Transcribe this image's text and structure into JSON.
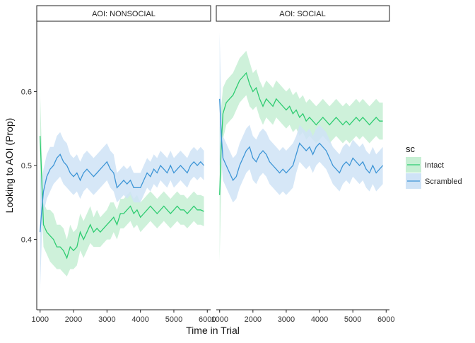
{
  "chart_data": {
    "type": "line",
    "ylabel": "Looking to AOI (Prop)",
    "xlabel": "Time in Trial",
    "xlim": [
      900,
      6100
    ],
    "ylim": [
      0.305,
      0.695
    ],
    "x_ticks": [
      1000,
      2000,
      3000,
      4000,
      5000,
      6000
    ],
    "y_ticks": [
      0.4,
      0.5,
      0.6
    ],
    "x_tick_labels": [
      "1000",
      "2000",
      "3000",
      "4000",
      "5000",
      "6000"
    ],
    "y_tick_labels": [
      "0.4",
      "0.5",
      "0.6"
    ],
    "grid": false,
    "legend": {
      "title": "sc",
      "position": "right",
      "entries": [
        "Intact",
        "Scrambled"
      ]
    },
    "colors": {
      "Intact": "#2ecc71",
      "Scrambled": "#3d95d6",
      "Intact_band": "#c6efd3",
      "Scrambled_band": "#cfe3f6"
    },
    "panels": [
      {
        "strip": "AOI:  NONSOCIAL",
        "series": [
          {
            "name": "Intact",
            "x": [
              1000,
              1050,
              1100,
              1200,
              1300,
              1400,
              1500,
              1600,
              1700,
              1800,
              1900,
              2000,
              2100,
              2200,
              2300,
              2400,
              2500,
              2600,
              2700,
              2800,
              2900,
              3000,
              3100,
              3200,
              3300,
              3400,
              3500,
              3600,
              3700,
              3800,
              3900,
              4000,
              4100,
              4200,
              4300,
              4400,
              4500,
              4600,
              4700,
              4800,
              4900,
              5000,
              5100,
              5200,
              5300,
              5400,
              5500,
              5600,
              5700,
              5800,
              5900
            ],
            "y": [
              0.54,
              0.48,
              0.42,
              0.41,
              0.405,
              0.4,
              0.39,
              0.39,
              0.385,
              0.375,
              0.39,
              0.385,
              0.39,
              0.41,
              0.4,
              0.41,
              0.42,
              0.41,
              0.415,
              0.41,
              0.415,
              0.42,
              0.425,
              0.43,
              0.42,
              0.435,
              0.435,
              0.44,
              0.445,
              0.435,
              0.44,
              0.43,
              0.435,
              0.44,
              0.445,
              0.44,
              0.435,
              0.44,
              0.445,
              0.44,
              0.435,
              0.44,
              0.445,
              0.44,
              0.44,
              0.435,
              0.44,
              0.445,
              0.44,
              0.44,
              0.438
            ],
            "lo": [
              0.48,
              0.45,
              0.39,
              0.38,
              0.37,
              0.365,
              0.36,
              0.36,
              0.355,
              0.35,
              0.36,
              0.36,
              0.365,
              0.385,
              0.375,
              0.385,
              0.395,
              0.39,
              0.39,
              0.39,
              0.395,
              0.4,
              0.4,
              0.41,
              0.4,
              0.415,
              0.415,
              0.42,
              0.425,
              0.415,
              0.42,
              0.41,
              0.415,
              0.42,
              0.425,
              0.42,
              0.415,
              0.42,
              0.425,
              0.42,
              0.415,
              0.42,
              0.425,
              0.42,
              0.42,
              0.415,
              0.42,
              0.425,
              0.42,
              0.42,
              0.418
            ],
            "hi": [
              0.6,
              0.52,
              0.45,
              0.44,
              0.44,
              0.435,
              0.42,
              0.42,
              0.415,
              0.4,
              0.42,
              0.41,
              0.415,
              0.435,
              0.425,
              0.435,
              0.445,
              0.43,
              0.44,
              0.43,
              0.435,
              0.44,
              0.45,
              0.45,
              0.44,
              0.455,
              0.455,
              0.46,
              0.465,
              0.455,
              0.46,
              0.45,
              0.455,
              0.46,
              0.465,
              0.46,
              0.455,
              0.46,
              0.465,
              0.46,
              0.455,
              0.46,
              0.465,
              0.46,
              0.46,
              0.455,
              0.46,
              0.465,
              0.46,
              0.46,
              0.458
            ]
          },
          {
            "name": "Scrambled",
            "x": [
              1000,
              1050,
              1100,
              1200,
              1300,
              1400,
              1500,
              1600,
              1700,
              1800,
              1900,
              2000,
              2100,
              2200,
              2300,
              2400,
              2500,
              2600,
              2700,
              2800,
              2900,
              3000,
              3100,
              3200,
              3300,
              3400,
              3500,
              3600,
              3700,
              3800,
              3900,
              4000,
              4100,
              4200,
              4300,
              4400,
              4500,
              4600,
              4700,
              4800,
              4900,
              5000,
              5100,
              5200,
              5300,
              5400,
              5500,
              5600,
              5700,
              5800,
              5900
            ],
            "y": [
              0.41,
              0.44,
              0.465,
              0.485,
              0.495,
              0.5,
              0.51,
              0.515,
              0.505,
              0.5,
              0.49,
              0.485,
              0.49,
              0.48,
              0.49,
              0.495,
              0.49,
              0.485,
              0.49,
              0.495,
              0.5,
              0.505,
              0.495,
              0.49,
              0.47,
              0.475,
              0.48,
              0.475,
              0.48,
              0.47,
              0.47,
              0.47,
              0.48,
              0.49,
              0.485,
              0.495,
              0.49,
              0.5,
              0.495,
              0.49,
              0.5,
              0.49,
              0.495,
              0.5,
              0.495,
              0.49,
              0.5,
              0.505,
              0.5,
              0.505,
              0.5
            ],
            "lo": [
              0.33,
              0.4,
              0.435,
              0.455,
              0.465,
              0.475,
              0.48,
              0.485,
              0.475,
              0.47,
              0.465,
              0.46,
              0.465,
              0.455,
              0.465,
              0.47,
              0.465,
              0.46,
              0.465,
              0.47,
              0.475,
              0.48,
              0.47,
              0.465,
              0.45,
              0.455,
              0.46,
              0.455,
              0.46,
              0.45,
              0.45,
              0.45,
              0.46,
              0.47,
              0.465,
              0.475,
              0.47,
              0.48,
              0.475,
              0.47,
              0.48,
              0.47,
              0.475,
              0.48,
              0.475,
              0.47,
              0.48,
              0.485,
              0.48,
              0.485,
              0.48
            ],
            "hi": [
              0.49,
              0.48,
              0.495,
              0.515,
              0.525,
              0.525,
              0.54,
              0.545,
              0.535,
              0.53,
              0.515,
              0.51,
              0.515,
              0.505,
              0.515,
              0.52,
              0.515,
              0.51,
              0.515,
              0.52,
              0.525,
              0.53,
              0.52,
              0.515,
              0.49,
              0.495,
              0.5,
              0.495,
              0.5,
              0.49,
              0.49,
              0.49,
              0.5,
              0.51,
              0.505,
              0.515,
              0.51,
              0.52,
              0.515,
              0.51,
              0.52,
              0.51,
              0.515,
              0.52,
              0.515,
              0.51,
              0.52,
              0.525,
              0.52,
              0.525,
              0.52
            ]
          }
        ]
      },
      {
        "strip": "AOI:  SOCIAL",
        "series": [
          {
            "name": "Intact",
            "x": [
              1000,
              1050,
              1100,
              1200,
              1300,
              1400,
              1500,
              1600,
              1700,
              1800,
              1900,
              2000,
              2100,
              2200,
              2300,
              2400,
              2500,
              2600,
              2700,
              2800,
              2900,
              3000,
              3100,
              3200,
              3300,
              3400,
              3500,
              3600,
              3700,
              3800,
              3900,
              4000,
              4100,
              4200,
              4300,
              4400,
              4500,
              4600,
              4700,
              4800,
              4900,
              5000,
              5100,
              5200,
              5300,
              5400,
              5500,
              5600,
              5700,
              5800,
              5900
            ],
            "y": [
              0.46,
              0.53,
              0.57,
              0.585,
              0.59,
              0.595,
              0.605,
              0.615,
              0.62,
              0.625,
              0.61,
              0.6,
              0.605,
              0.59,
              0.58,
              0.59,
              0.585,
              0.58,
              0.59,
              0.585,
              0.58,
              0.575,
              0.58,
              0.57,
              0.575,
              0.565,
              0.57,
              0.56,
              0.565,
              0.56,
              0.555,
              0.56,
              0.565,
              0.56,
              0.555,
              0.56,
              0.565,
              0.56,
              0.555,
              0.56,
              0.555,
              0.56,
              0.565,
              0.56,
              0.565,
              0.56,
              0.555,
              0.56,
              0.565,
              0.56,
              0.56
            ],
            "lo": [
              0.37,
              0.48,
              0.535,
              0.555,
              0.56,
              0.565,
              0.575,
              0.585,
              0.59,
              0.595,
              0.58,
              0.575,
              0.58,
              0.565,
              0.555,
              0.565,
              0.56,
              0.555,
              0.565,
              0.56,
              0.555,
              0.55,
              0.555,
              0.545,
              0.55,
              0.54,
              0.545,
              0.535,
              0.54,
              0.535,
              0.53,
              0.535,
              0.54,
              0.535,
              0.53,
              0.535,
              0.54,
              0.535,
              0.53,
              0.535,
              0.53,
              0.535,
              0.54,
              0.535,
              0.54,
              0.535,
              0.53,
              0.535,
              0.54,
              0.535,
              0.535
            ],
            "hi": [
              0.55,
              0.58,
              0.605,
              0.615,
              0.62,
              0.625,
              0.635,
              0.645,
              0.65,
              0.655,
              0.64,
              0.625,
              0.63,
              0.615,
              0.605,
              0.615,
              0.61,
              0.605,
              0.615,
              0.61,
              0.605,
              0.6,
              0.605,
              0.595,
              0.6,
              0.59,
              0.595,
              0.585,
              0.59,
              0.585,
              0.58,
              0.585,
              0.59,
              0.585,
              0.58,
              0.585,
              0.59,
              0.585,
              0.58,
              0.585,
              0.58,
              0.585,
              0.59,
              0.585,
              0.59,
              0.585,
              0.58,
              0.585,
              0.59,
              0.585,
              0.585
            ]
          },
          {
            "name": "Scrambled",
            "x": [
              1000,
              1050,
              1100,
              1200,
              1300,
              1400,
              1500,
              1600,
              1700,
              1800,
              1900,
              2000,
              2100,
              2200,
              2300,
              2400,
              2500,
              2600,
              2700,
              2800,
              2900,
              3000,
              3100,
              3200,
              3300,
              3400,
              3500,
              3600,
              3700,
              3800,
              3900,
              4000,
              4100,
              4200,
              4300,
              4400,
              4500,
              4600,
              4700,
              4800,
              4900,
              5000,
              5100,
              5200,
              5300,
              5400,
              5500,
              5600,
              5700,
              5800,
              5900
            ],
            "y": [
              0.59,
              0.54,
              0.51,
              0.5,
              0.49,
              0.48,
              0.485,
              0.5,
              0.51,
              0.52,
              0.525,
              0.51,
              0.505,
              0.515,
              0.52,
              0.515,
              0.505,
              0.5,
              0.495,
              0.49,
              0.495,
              0.49,
              0.495,
              0.5,
              0.515,
              0.53,
              0.525,
              0.52,
              0.525,
              0.515,
              0.525,
              0.53,
              0.525,
              0.52,
              0.51,
              0.5,
              0.495,
              0.49,
              0.5,
              0.505,
              0.5,
              0.51,
              0.505,
              0.5,
              0.505,
              0.495,
              0.49,
              0.5,
              0.49,
              0.495,
              0.5
            ],
            "lo": [
              0.5,
              0.505,
              0.48,
              0.47,
              0.46,
              0.45,
              0.455,
              0.47,
              0.48,
              0.49,
              0.495,
              0.48,
              0.475,
              0.485,
              0.49,
              0.485,
              0.475,
              0.47,
              0.465,
              0.46,
              0.465,
              0.46,
              0.465,
              0.47,
              0.49,
              0.505,
              0.5,
              0.495,
              0.5,
              0.49,
              0.5,
              0.505,
              0.5,
              0.495,
              0.485,
              0.475,
              0.47,
              0.465,
              0.475,
              0.48,
              0.475,
              0.485,
              0.48,
              0.475,
              0.48,
              0.47,
              0.465,
              0.475,
              0.465,
              0.47,
              0.475
            ],
            "hi": [
              0.68,
              0.575,
              0.54,
              0.53,
              0.52,
              0.51,
              0.515,
              0.53,
              0.54,
              0.55,
              0.555,
              0.54,
              0.535,
              0.545,
              0.55,
              0.545,
              0.535,
              0.53,
              0.525,
              0.52,
              0.525,
              0.52,
              0.525,
              0.53,
              0.54,
              0.555,
              0.55,
              0.545,
              0.55,
              0.54,
              0.55,
              0.555,
              0.55,
              0.545,
              0.535,
              0.525,
              0.52,
              0.515,
              0.525,
              0.53,
              0.525,
              0.535,
              0.53,
              0.525,
              0.53,
              0.52,
              0.515,
              0.525,
              0.515,
              0.52,
              0.525
            ]
          }
        ]
      }
    ]
  }
}
